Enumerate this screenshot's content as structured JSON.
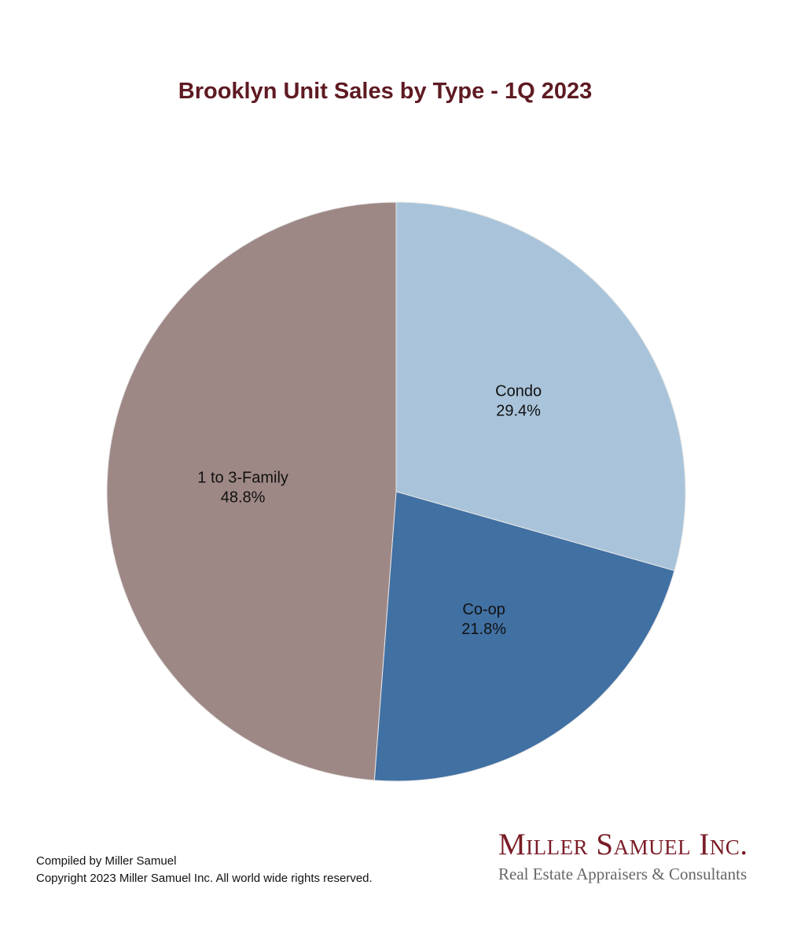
{
  "chart_data": {
    "type": "pie",
    "title": "Brooklyn Unit Sales by Type - 1Q 2023",
    "slices": [
      {
        "name": "Condo",
        "value": 29.4,
        "label": "29.4%",
        "color": "#a9c4da"
      },
      {
        "name": "Co-op",
        "value": 21.8,
        "label": "21.8%",
        "color": "#4170a3"
      },
      {
        "name": "1 to 3-Family",
        "value": 48.8,
        "label": "48.8%",
        "color": "#9e8886"
      }
    ],
    "start_angle": "12 o'clock",
    "direction": "clockwise"
  },
  "footer": {
    "compiled": "Compiled by Miller Samuel",
    "copyright": "Copyright 2023 Miller Samuel Inc.  All world wide rights reserved."
  },
  "logo": {
    "name": "Miller Samuel Inc.",
    "tagline": "Real Estate Appraisers & Consultants"
  }
}
